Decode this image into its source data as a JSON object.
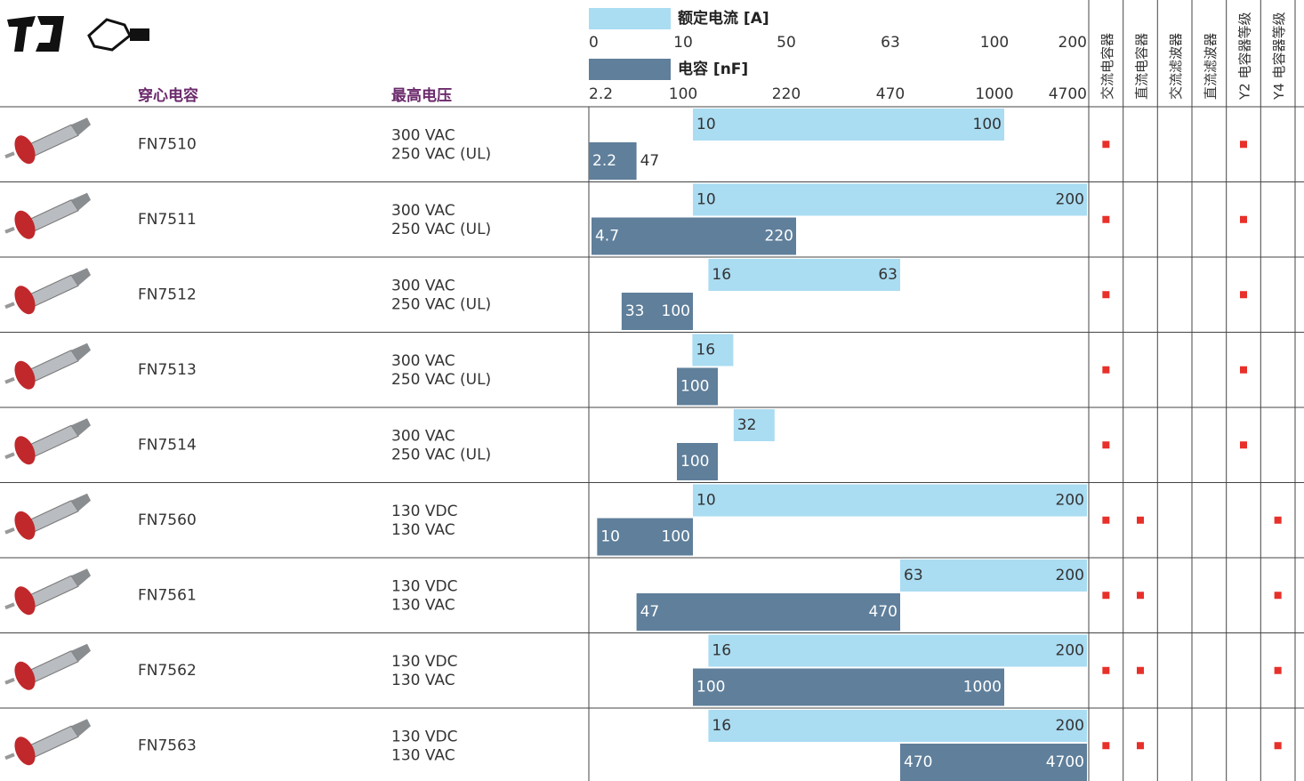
{
  "legend": {
    "current_label": "额定电流 [A]",
    "capacitance_label": "电容 [nF]",
    "current_color": "#aadcf2",
    "capacitance_color": "#5f7f9b"
  },
  "current_ticks": [
    0,
    10,
    50,
    63,
    100,
    200
  ],
  "capacitance_ticks": [
    2.2,
    100,
    220,
    470,
    1000,
    4700
  ],
  "headers": {
    "product": "穿心电容",
    "voltage": "最高电压",
    "types": [
      "交流电容器",
      "直流电容器",
      "交流滤波器",
      "直流滤波器",
      "Y2 电容器等级",
      "Y4 电容器等级"
    ]
  },
  "rows": [
    {
      "name": "FN7510",
      "voltage": [
        "300 VAC",
        "250 VAC (UL)"
      ],
      "current": [
        10,
        100
      ],
      "capacitance": [
        2.2,
        47
      ],
      "types": [
        true,
        false,
        false,
        false,
        true,
        false
      ]
    },
    {
      "name": "FN7511",
      "voltage": [
        "300 VAC",
        "250 VAC (UL)"
      ],
      "current": [
        10,
        200
      ],
      "capacitance": [
        4.7,
        220
      ],
      "types": [
        true,
        false,
        false,
        false,
        true,
        false
      ]
    },
    {
      "name": "FN7512",
      "voltage": [
        "300 VAC",
        "250 VAC (UL)"
      ],
      "current": [
        16,
        63
      ],
      "capacitance": [
        33,
        100
      ],
      "types": [
        true,
        false,
        false,
        false,
        true,
        false
      ]
    },
    {
      "name": "FN7513",
      "voltage": [
        "300 VAC",
        "250 VAC (UL)"
      ],
      "current": [
        16
      ],
      "capacitance": [
        100
      ],
      "types": [
        true,
        false,
        false,
        false,
        true,
        false
      ]
    },
    {
      "name": "FN7514",
      "voltage": [
        "300 VAC",
        "250 VAC (UL)"
      ],
      "current": [
        32
      ],
      "capacitance": [
        100
      ],
      "types": [
        true,
        false,
        false,
        false,
        true,
        false
      ]
    },
    {
      "name": "FN7560",
      "voltage": [
        "130 VDC",
        "130 VAC"
      ],
      "current": [
        10,
        200
      ],
      "capacitance": [
        10,
        100
      ],
      "types": [
        true,
        true,
        false,
        false,
        false,
        true
      ]
    },
    {
      "name": "FN7561",
      "voltage": [
        "130 VDC",
        "130 VAC"
      ],
      "current": [
        63,
        200
      ],
      "capacitance": [
        47,
        470
      ],
      "types": [
        true,
        true,
        false,
        false,
        false,
        true
      ]
    },
    {
      "name": "FN7562",
      "voltage": [
        "130 VDC",
        "130 VAC"
      ],
      "current": [
        16,
        200
      ],
      "capacitance": [
        100,
        1000
      ],
      "types": [
        true,
        true,
        false,
        false,
        false,
        true
      ]
    },
    {
      "name": "FN7563",
      "voltage": [
        "130 VDC",
        "130 VAC"
      ],
      "current": [
        16,
        200
      ],
      "capacitance": [
        470,
        4700
      ],
      "types": [
        true,
        true,
        false,
        false,
        false,
        true
      ]
    }
  ]
}
